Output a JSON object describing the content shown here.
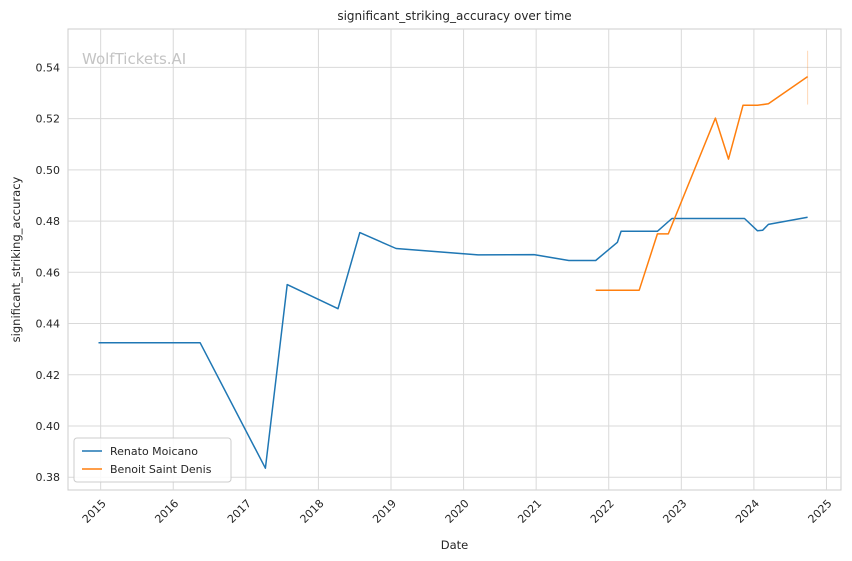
{
  "chart_data": {
    "type": "line",
    "title": "significant_striking_accuracy over time",
    "xlabel": "Date",
    "ylabel": "significant_striking_accuracy",
    "watermark": "WolfTickets.AI",
    "xlim": [
      2014.55,
      2025.2
    ],
    "ylim": [
      0.375,
      0.555
    ],
    "x_ticks": [
      "2015",
      "2016",
      "2017",
      "2018",
      "2019",
      "2020",
      "2021",
      "2022",
      "2023",
      "2024",
      "2025"
    ],
    "y_ticks": [
      "0.38",
      "0.40",
      "0.42",
      "0.44",
      "0.46",
      "0.48",
      "0.50",
      "0.52",
      "0.54"
    ],
    "grid": true,
    "legend_position": "lower-left",
    "series": [
      {
        "name": "Renato Moicano",
        "color": "#1f77b4",
        "points": [
          [
            2014.97,
            0.4325
          ],
          [
            2016.37,
            0.4325
          ],
          [
            2017.27,
            0.3835
          ],
          [
            2017.57,
            0.4552
          ],
          [
            2018.27,
            0.4458
          ],
          [
            2018.57,
            0.4755
          ],
          [
            2019.07,
            0.4693
          ],
          [
            2020.2,
            0.4668
          ],
          [
            2020.97,
            0.4669
          ],
          [
            2021.45,
            0.4646
          ],
          [
            2021.82,
            0.4646
          ],
          [
            2022.12,
            0.4717
          ],
          [
            2022.17,
            0.476
          ],
          [
            2022.67,
            0.476
          ],
          [
            2022.87,
            0.481
          ],
          [
            2023.87,
            0.481
          ],
          [
            2024.05,
            0.4762
          ],
          [
            2024.12,
            0.4764
          ],
          [
            2024.2,
            0.4787
          ],
          [
            2024.74,
            0.4815
          ]
        ]
      },
      {
        "name": "Benoit Saint Denis",
        "color": "#ff7f0e",
        "points": [
          [
            2021.82,
            0.453
          ],
          [
            2022.42,
            0.453
          ],
          [
            2022.67,
            0.475
          ],
          [
            2022.82,
            0.475
          ],
          [
            2023.47,
            0.5202
          ],
          [
            2023.65,
            0.5042
          ],
          [
            2023.85,
            0.5252
          ],
          [
            2024.05,
            0.5252
          ],
          [
            2024.2,
            0.5258
          ],
          [
            2024.74,
            0.5364
          ]
        ]
      }
    ],
    "error_band": {
      "series": "Benoit Saint Denis",
      "x": 2024.74,
      "low": 0.5255,
      "high": 0.5465
    }
  }
}
